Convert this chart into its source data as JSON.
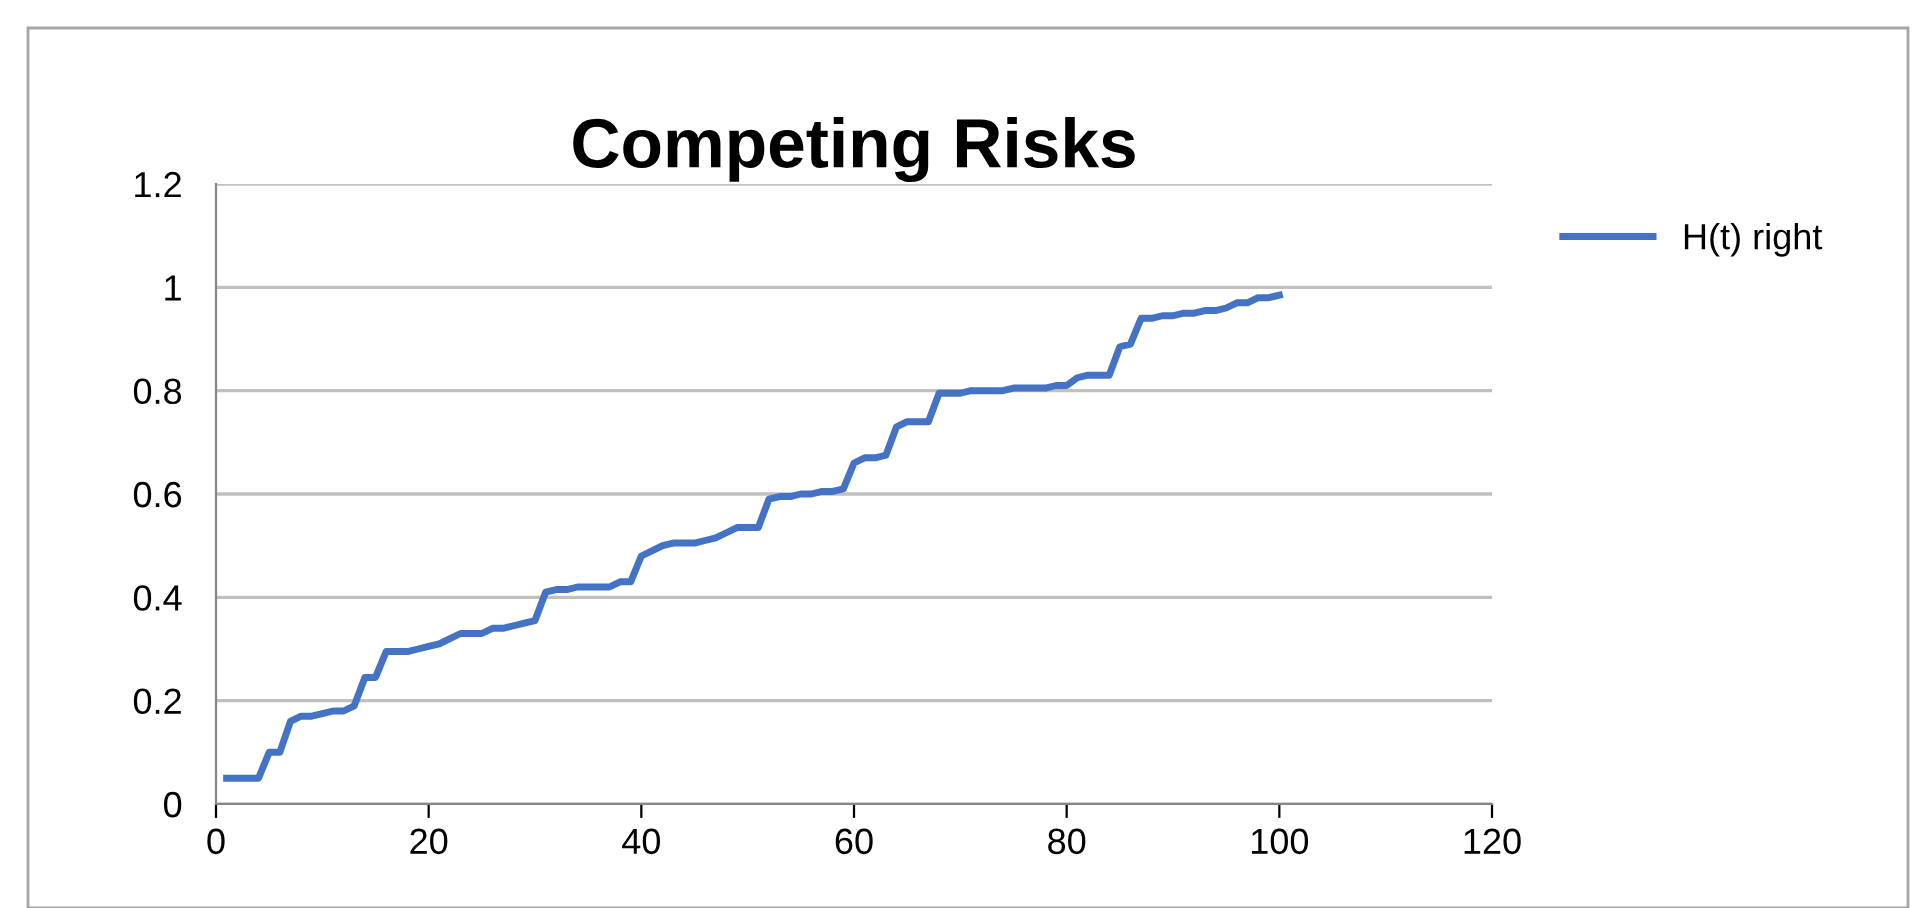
{
  "chart_data": {
    "type": "line",
    "title": "Competing Risks",
    "x": [
      1,
      2,
      3,
      4,
      5,
      6,
      7,
      8,
      9,
      10,
      11,
      12,
      13,
      14,
      15,
      16,
      17,
      18,
      19,
      20,
      21,
      22,
      23,
      24,
      25,
      26,
      27,
      28,
      29,
      30,
      31,
      32,
      33,
      34,
      35,
      36,
      37,
      38,
      39,
      40,
      41,
      42,
      43,
      44,
      45,
      46,
      47,
      48,
      49,
      50,
      51,
      52,
      53,
      54,
      55,
      56,
      57,
      58,
      59,
      60,
      61,
      62,
      63,
      64,
      65,
      66,
      67,
      68,
      69,
      70,
      71,
      72,
      73,
      74,
      75,
      76,
      77,
      78,
      79,
      80,
      81,
      82,
      83,
      84,
      85,
      86,
      87,
      88,
      89,
      90,
      91,
      92,
      93,
      94,
      95,
      96,
      97,
      98,
      99,
      100
    ],
    "series": [
      {
        "name": "H(t) right",
        "color": "#4472c4",
        "values": [
          0.05,
          0.05,
          0.05,
          0.05,
          0.1,
          0.1,
          0.16,
          0.17,
          0.17,
          0.175,
          0.18,
          0.18,
          0.19,
          0.245,
          0.245,
          0.295,
          0.295,
          0.295,
          0.3,
          0.305,
          0.31,
          0.32,
          0.33,
          0.33,
          0.33,
          0.34,
          0.34,
          0.345,
          0.35,
          0.355,
          0.41,
          0.415,
          0.415,
          0.42,
          0.42,
          0.42,
          0.42,
          0.43,
          0.43,
          0.48,
          0.49,
          0.5,
          0.505,
          0.505,
          0.505,
          0.51,
          0.515,
          0.525,
          0.535,
          0.535,
          0.535,
          0.59,
          0.595,
          0.595,
          0.6,
          0.6,
          0.605,
          0.605,
          0.61,
          0.66,
          0.67,
          0.67,
          0.675,
          0.73,
          0.74,
          0.74,
          0.74,
          0.795,
          0.795,
          0.795,
          0.8,
          0.8,
          0.8,
          0.8,
          0.805,
          0.805,
          0.805,
          0.805,
          0.81,
          0.81,
          0.825,
          0.83,
          0.83,
          0.83,
          0.885,
          0.89,
          0.94,
          0.94,
          0.945,
          0.945,
          0.95,
          0.95,
          0.955,
          0.955,
          0.96,
          0.97,
          0.97,
          0.98,
          0.98,
          0.985
        ]
      }
    ],
    "xlim": [
      0,
      120
    ],
    "xticks": [
      0,
      20,
      40,
      60,
      80,
      100,
      120
    ],
    "ylim": [
      0,
      1.2
    ],
    "yticks": [
      0,
      0.2,
      0.4,
      0.6,
      0.8,
      1,
      1.2
    ],
    "grid": "y",
    "legend": "right",
    "marker": "none",
    "line_style": "solid"
  }
}
